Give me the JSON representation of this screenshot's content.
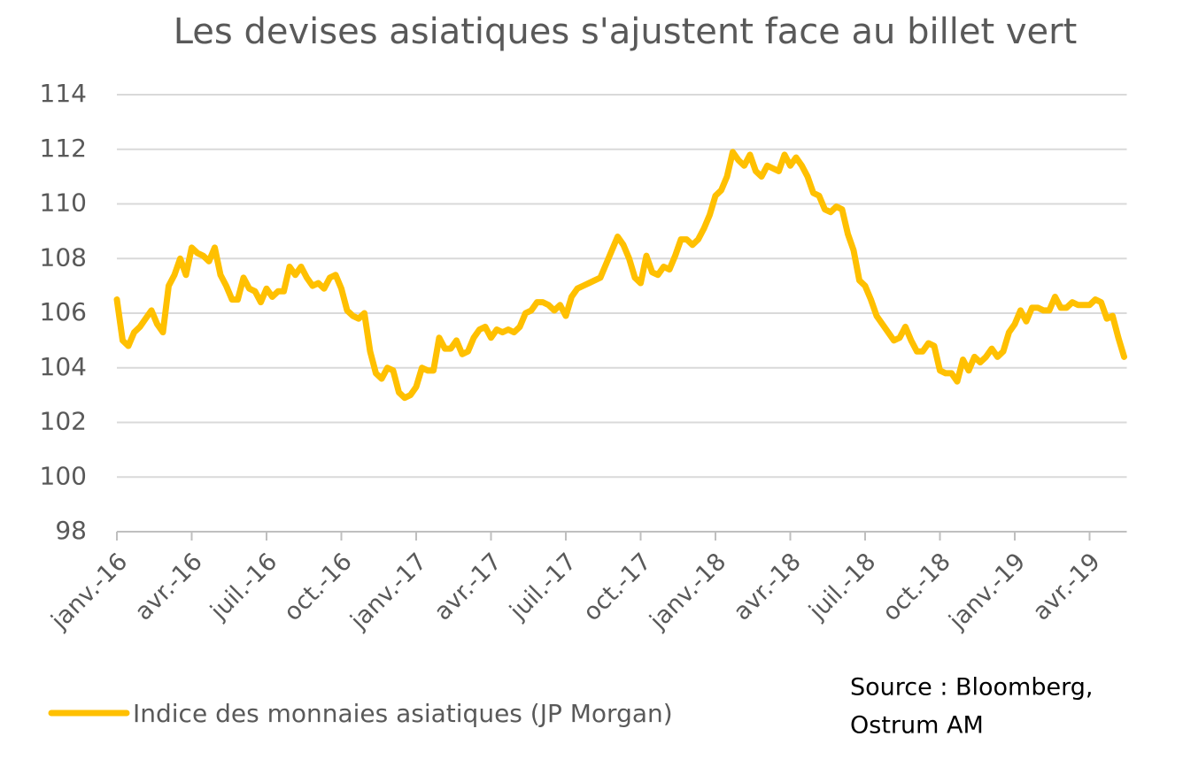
{
  "chart_data": {
    "type": "line",
    "title": "Les devises asiatiques s'ajustent face au billet vert",
    "categories": [
      "janv.-16",
      null,
      null,
      null,
      null,
      null,
      null,
      null,
      null,
      null,
      null,
      null,
      null,
      "avr.-16",
      null,
      null,
      null,
      null,
      null,
      null,
      null,
      null,
      null,
      null,
      null,
      null,
      "juil.-16",
      null,
      null,
      null,
      null,
      null,
      null,
      null,
      null,
      null,
      null,
      null,
      null,
      "oct.-16",
      null,
      null,
      null,
      null,
      null,
      null,
      null,
      null,
      null,
      null,
      null,
      null,
      "janv.-17",
      null,
      null,
      null,
      null,
      null,
      null,
      null,
      null,
      null,
      null,
      null,
      null,
      "avr.-17",
      null,
      null,
      null,
      null,
      null,
      null,
      null,
      null,
      null,
      null,
      null,
      null,
      "juil.-17",
      null,
      null,
      null,
      null,
      null,
      null,
      null,
      null,
      null,
      null,
      null,
      null,
      "oct.-17",
      null,
      null,
      null,
      null,
      null,
      null,
      null,
      null,
      null,
      null,
      null,
      null,
      "janv.-18",
      null,
      null,
      null,
      null,
      null,
      null,
      null,
      null,
      null,
      null,
      null,
      null,
      "avr.-18",
      null,
      null,
      null,
      null,
      null,
      null,
      null,
      null,
      null,
      null,
      null,
      null,
      "juil.-18",
      null,
      null,
      null,
      null,
      null,
      null,
      null,
      null,
      null,
      null,
      null,
      null,
      "oct.-18",
      null,
      null,
      null,
      null,
      null,
      null,
      null,
      null,
      null,
      null,
      null,
      null,
      "janv.-19",
      null,
      null,
      null,
      null,
      null,
      null,
      null,
      null,
      null,
      null,
      null,
      null,
      "avr.-19",
      null,
      null,
      null,
      null,
      null,
      null
    ],
    "series": [
      {
        "name": "Indice des monnaies asiatiques (JP Morgan)",
        "color": "#FFC000",
        "values": [
          106.5,
          105.0,
          104.8,
          105.3,
          105.5,
          105.8,
          106.1,
          105.6,
          105.3,
          107.0,
          107.4,
          108.0,
          107.4,
          108.4,
          108.2,
          108.1,
          107.9,
          108.4,
          107.4,
          107.0,
          106.5,
          106.5,
          107.3,
          106.9,
          106.8,
          106.4,
          106.9,
          106.6,
          106.8,
          106.8,
          107.7,
          107.4,
          107.7,
          107.3,
          107.0,
          107.1,
          106.9,
          107.3,
          107.4,
          106.9,
          106.1,
          105.9,
          105.8,
          106.0,
          104.6,
          103.8,
          103.6,
          104.0,
          103.9,
          103.1,
          102.9,
          103.0,
          103.3,
          104.0,
          103.9,
          103.9,
          105.1,
          104.7,
          104.7,
          105.0,
          104.5,
          104.6,
          105.1,
          105.4,
          105.5,
          105.1,
          105.4,
          105.3,
          105.4,
          105.3,
          105.5,
          106.0,
          106.1,
          106.4,
          106.4,
          106.3,
          106.1,
          106.3,
          105.9,
          106.6,
          106.9,
          107.0,
          107.1,
          107.2,
          107.3,
          107.8,
          108.3,
          108.8,
          108.5,
          108.0,
          107.3,
          107.1,
          108.1,
          107.5,
          107.4,
          107.7,
          107.6,
          108.1,
          108.7,
          108.7,
          108.5,
          108.7,
          109.1,
          109.6,
          110.3,
          110.5,
          111.0,
          111.9,
          111.6,
          111.4,
          111.8,
          111.2,
          111.0,
          111.4,
          111.3,
          111.2,
          111.8,
          111.4,
          111.7,
          111.4,
          111.0,
          110.4,
          110.3,
          109.8,
          109.7,
          109.9,
          109.8,
          108.9,
          108.3,
          107.2,
          107.0,
          106.5,
          105.9,
          105.6,
          105.3,
          105.0,
          105.1,
          105.5,
          105.0,
          104.6,
          104.6,
          104.9,
          104.8,
          103.9,
          103.8,
          103.8,
          103.5,
          104.3,
          103.9,
          104.4,
          104.2,
          104.4,
          104.7,
          104.4,
          104.6,
          105.3,
          105.6,
          106.1,
          105.7,
          106.2,
          106.2,
          106.1,
          106.1,
          106.6,
          106.2,
          106.2,
          106.4,
          106.3,
          106.3,
          106.3,
          106.5,
          106.4,
          105.8,
          105.9,
          105.1,
          104.4
        ]
      }
    ],
    "ylim": [
      98,
      114
    ],
    "yticks": [
      98,
      100,
      102,
      104,
      106,
      108,
      110,
      112,
      114
    ],
    "grid": true,
    "source": [
      "Source : Bloomberg,",
      "Ostrum AM"
    ]
  }
}
